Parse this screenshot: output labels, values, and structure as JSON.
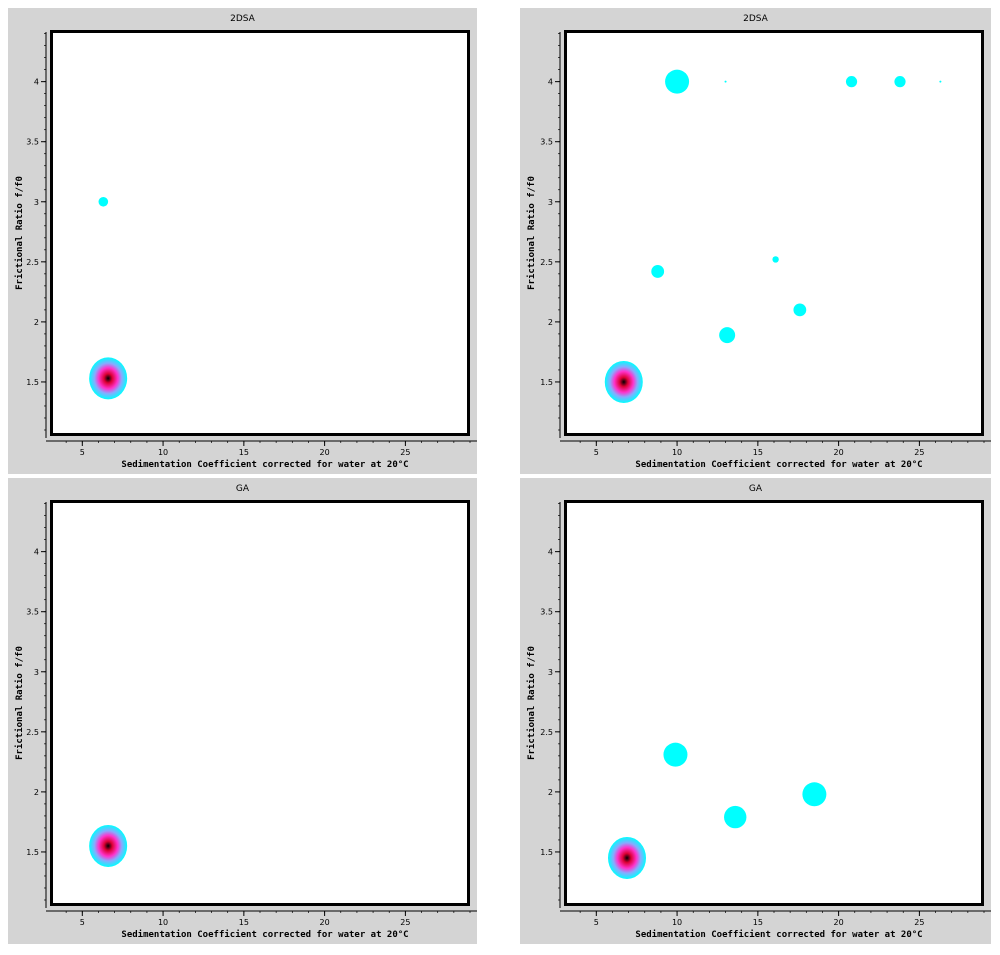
{
  "chart_data": [
    {
      "type": "scatter",
      "title": "2DSA",
      "xlabel": "Sedimentation Coefficient corrected for water at 20°C",
      "ylabel": "Frictional Ratio f/f0",
      "xlim": [
        3,
        29
      ],
      "ylim": [
        1.05,
        4.43
      ],
      "xticks": [
        5,
        10,
        15,
        20,
        25
      ],
      "yticks": [
        1.5,
        2,
        2.5,
        3,
        3.5,
        4
      ],
      "ytick_labels": [
        "1.5",
        "2",
        "2.5",
        "3",
        "3.5",
        "4"
      ],
      "points": [
        {
          "x": 6.6,
          "y": 1.53,
          "concentration": 1.0
        },
        {
          "x": 6.3,
          "y": 3.0,
          "concentration": 0.12
        }
      ]
    },
    {
      "type": "scatter",
      "title": "2DSA",
      "xlabel": "Sedimentation Coefficient corrected for water at 20°C",
      "ylabel": "Frictional Ratio f/f0",
      "xlim": [
        3,
        29
      ],
      "ylim": [
        1.05,
        4.43
      ],
      "xticks": [
        5,
        10,
        15,
        20,
        25
      ],
      "yticks": [
        1.5,
        2,
        2.5,
        3,
        3.5,
        4
      ],
      "ytick_labels": [
        "1.5",
        "2",
        "2.5",
        "3",
        "3.5",
        "4"
      ],
      "points": [
        {
          "x": 6.7,
          "y": 1.5,
          "concentration": 1.0
        },
        {
          "x": 10.0,
          "y": 4.0,
          "concentration": 0.3
        },
        {
          "x": 13.0,
          "y": 4.0,
          "concentration": 0.02
        },
        {
          "x": 20.8,
          "y": 4.0,
          "concentration": 0.14
        },
        {
          "x": 23.8,
          "y": 4.0,
          "concentration": 0.14
        },
        {
          "x": 26.3,
          "y": 4.0,
          "concentration": 0.02
        },
        {
          "x": 8.8,
          "y": 2.42,
          "concentration": 0.16
        },
        {
          "x": 16.1,
          "y": 2.52,
          "concentration": 0.08
        },
        {
          "x": 13.1,
          "y": 1.89,
          "concentration": 0.2
        },
        {
          "x": 17.6,
          "y": 2.1,
          "concentration": 0.16
        }
      ]
    },
    {
      "type": "scatter",
      "title": "GA",
      "xlabel": "Sedimentation Coefficient corrected for water at 20°C",
      "ylabel": "Frictional Ratio f/f0",
      "xlim": [
        3,
        29
      ],
      "ylim": [
        1.05,
        4.43
      ],
      "xticks": [
        5,
        10,
        15,
        20,
        25
      ],
      "yticks": [
        1.5,
        2,
        2.5,
        3,
        3.5,
        4
      ],
      "ytick_labels": [
        "1.5",
        "2",
        "2.5",
        "3",
        "3.5",
        "4"
      ],
      "points": [
        {
          "x": 6.6,
          "y": 1.55,
          "concentration": 1.0
        }
      ]
    },
    {
      "type": "scatter",
      "title": "GA",
      "xlabel": "Sedimentation Coefficient corrected for water at 20°C",
      "ylabel": "Frictional Ratio f/f0",
      "xlim": [
        3,
        29
      ],
      "ylim": [
        1.05,
        4.43
      ],
      "xticks": [
        5,
        10,
        15,
        20,
        25
      ],
      "yticks": [
        1.5,
        2,
        2.5,
        3,
        3.5,
        4
      ],
      "ytick_labels": [
        "1.5",
        "2",
        "2.5",
        "3",
        "3.5",
        "4"
      ],
      "points": [
        {
          "x": 6.9,
          "y": 1.45,
          "concentration": 1.0
        },
        {
          "x": 9.9,
          "y": 2.31,
          "concentration": 0.3
        },
        {
          "x": 13.6,
          "y": 1.79,
          "concentration": 0.28
        },
        {
          "x": 18.5,
          "y": 1.98,
          "concentration": 0.3
        }
      ]
    }
  ],
  "colors": {
    "panel_background": "#d4d4d4",
    "plot_background": "#ffffff",
    "low": "#00ffff",
    "mid": "#ff33cc",
    "high": "#000000"
  }
}
